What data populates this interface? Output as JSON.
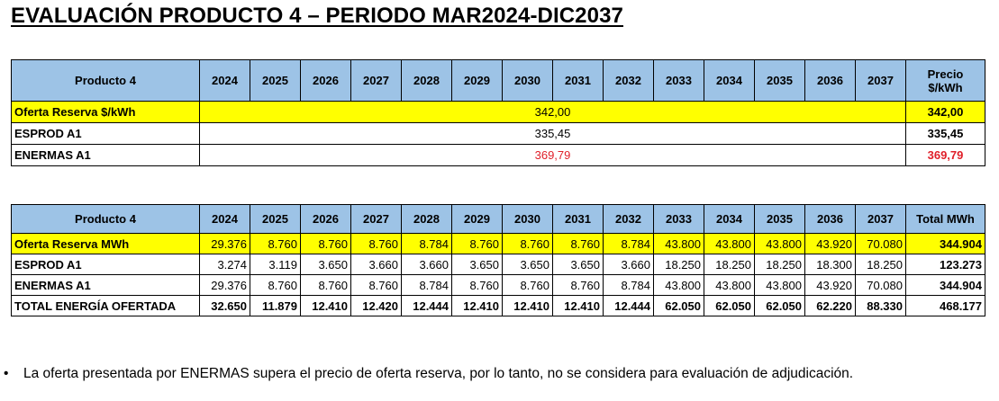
{
  "title": "EVALUACIÓN PRODUCTO 4 – PERIODO MAR2024-DIC2037",
  "years": [
    "2024",
    "2025",
    "2026",
    "2027",
    "2028",
    "2029",
    "2030",
    "2031",
    "2032",
    "2033",
    "2034",
    "2035",
    "2036",
    "2037"
  ],
  "table1": {
    "header_label": "Producto 4",
    "last_header_line1": "Precio",
    "last_header_line2": "$/kWh",
    "rows": [
      {
        "label": "Oferta Reserva $/kWh",
        "span_value": "342,00",
        "price": "342,00"
      },
      {
        "label": "ESPROD A1",
        "span_value": "335,45",
        "price": "335,45"
      },
      {
        "label": "ENERMAS A1",
        "span_value": "369,79",
        "price": "369,79"
      }
    ]
  },
  "table2": {
    "header_label": "Producto 4",
    "last_header": "Total MWh",
    "rows": [
      {
        "label": "Oferta Reserva MWh",
        "values": [
          "29.376",
          "8.760",
          "8.760",
          "8.760",
          "8.784",
          "8.760",
          "8.760",
          "8.760",
          "8.784",
          "43.800",
          "43.800",
          "43.800",
          "43.920",
          "70.080"
        ],
        "total": "344.904"
      },
      {
        "label": "ESPROD A1",
        "values": [
          "3.274",
          "3.119",
          "3.650",
          "3.660",
          "3.660",
          "3.650",
          "3.650",
          "3.650",
          "3.660",
          "18.250",
          "18.250",
          "18.250",
          "18.300",
          "18.250"
        ],
        "total": "123.273"
      },
      {
        "label": "ENERMAS A1",
        "values": [
          "29.376",
          "8.760",
          "8.760",
          "8.760",
          "8.784",
          "8.760",
          "8.760",
          "8.760",
          "8.784",
          "43.800",
          "43.800",
          "43.800",
          "43.920",
          "70.080"
        ],
        "total": "344.904"
      },
      {
        "label": "TOTAL ENERGÍA OFERTADA",
        "values": [
          "32.650",
          "11.879",
          "12.410",
          "12.420",
          "12.444",
          "12.410",
          "12.410",
          "12.410",
          "12.444",
          "62.050",
          "62.050",
          "62.050",
          "62.220",
          "88.330"
        ],
        "total": "468.177"
      }
    ]
  },
  "note": {
    "bullet": "•",
    "text": "La oferta presentada por ENERMAS supera el precio de oferta reserva, por lo tanto, no se considera para evaluación de adjudicación."
  },
  "colors": {
    "header_blue": "#9dc3e6",
    "highlight_yellow": "#ffff00",
    "over_reserve_red": "#e0202a"
  }
}
